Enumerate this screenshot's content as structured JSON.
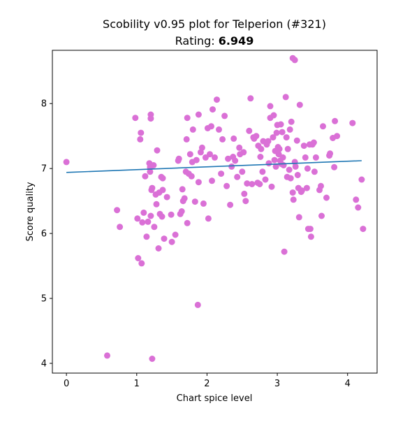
{
  "chart_data": {
    "type": "scatter",
    "title": "Scobility v0.95 plot for Telperion (#321)",
    "subtitle_prefix": "Rating: ",
    "rating": "6.949",
    "xlabel": "Chart spice level",
    "ylabel": "Score quality",
    "xlim": [
      -0.2,
      4.42
    ],
    "ylim": [
      3.85,
      8.82
    ],
    "xticks": [
      0,
      1,
      2,
      3,
      4
    ],
    "yticks": [
      4,
      5,
      6,
      7,
      8
    ],
    "grid": false,
    "colors": {
      "points": "#da70d6",
      "fit_line": "#1f77b4"
    },
    "fit_line": {
      "x": [
        0.0,
        4.2
      ],
      "y": [
        6.94,
        7.12
      ]
    },
    "points": [
      [
        0.0,
        7.1
      ],
      [
        0.58,
        4.12
      ],
      [
        0.72,
        6.36
      ],
      [
        0.76,
        6.1
      ],
      [
        0.98,
        7.78
      ],
      [
        1.01,
        6.23
      ],
      [
        1.02,
        5.62
      ],
      [
        1.05,
        7.45
      ],
      [
        1.06,
        7.55
      ],
      [
        1.07,
        5.54
      ],
      [
        1.08,
        6.17
      ],
      [
        1.1,
        6.32
      ],
      [
        1.12,
        6.88
      ],
      [
        1.14,
        5.95
      ],
      [
        1.16,
        6.18
      ],
      [
        1.18,
        7.08
      ],
      [
        1.19,
        7.02
      ],
      [
        1.2,
        7.83
      ],
      [
        1.2,
        7.77
      ],
      [
        1.21,
        6.67
      ],
      [
        1.19,
        6.95
      ],
      [
        1.2,
        6.27
      ],
      [
        1.22,
        6.7
      ],
      [
        1.22,
        4.07
      ],
      [
        1.24,
        7.05
      ],
      [
        1.25,
        6.1
      ],
      [
        1.27,
        6.6
      ],
      [
        1.28,
        6.45
      ],
      [
        1.29,
        7.28
      ],
      [
        1.31,
        5.77
      ],
      [
        1.32,
        6.63
      ],
      [
        1.33,
        6.3
      ],
      [
        1.35,
        6.87
      ],
      [
        1.36,
        6.26
      ],
      [
        1.37,
        6.67
      ],
      [
        1.37,
        6.85
      ],
      [
        1.39,
        5.92
      ],
      [
        1.43,
        6.56
      ],
      [
        1.49,
        6.29
      ],
      [
        1.5,
        5.87
      ],
      [
        1.55,
        5.98
      ],
      [
        1.59,
        7.12
      ],
      [
        1.6,
        7.15
      ],
      [
        1.62,
        6.3
      ],
      [
        1.64,
        6.34
      ],
      [
        1.65,
        6.68
      ],
      [
        1.66,
        6.5
      ],
      [
        1.68,
        6.54
      ],
      [
        1.7,
        6.95
      ],
      [
        1.71,
        7.45
      ],
      [
        1.72,
        6.16
      ],
      [
        1.72,
        7.78
      ],
      [
        1.74,
        6.92
      ],
      [
        1.76,
        7.22
      ],
      [
        1.78,
        6.88
      ],
      [
        1.79,
        7.1
      ],
      [
        1.8,
        7.6
      ],
      [
        1.83,
        6.49
      ],
      [
        1.85,
        7.13
      ],
      [
        1.87,
        4.9
      ],
      [
        1.88,
        6.79
      ],
      [
        1.88,
        7.83
      ],
      [
        1.91,
        7.25
      ],
      [
        1.93,
        7.32
      ],
      [
        1.95,
        6.46
      ],
      [
        1.98,
        7.17
      ],
      [
        2.01,
        7.62
      ],
      [
        2.02,
        6.23
      ],
      [
        2.04,
        7.22
      ],
      [
        2.06,
        7.65
      ],
      [
        2.07,
        6.81
      ],
      [
        2.08,
        7.91
      ],
      [
        2.11,
        7.17
      ],
      [
        2.14,
        8.06
      ],
      [
        2.17,
        7.6
      ],
      [
        2.2,
        6.92
      ],
      [
        2.22,
        7.45
      ],
      [
        2.25,
        7.81
      ],
      [
        2.28,
        6.73
      ],
      [
        2.3,
        7.15
      ],
      [
        2.33,
        6.44
      ],
      [
        2.35,
        7.03
      ],
      [
        2.37,
        7.18
      ],
      [
        2.38,
        7.46
      ],
      [
        2.4,
        7.12
      ],
      [
        2.43,
        6.87
      ],
      [
        2.46,
        7.32
      ],
      [
        2.47,
        7.22
      ],
      [
        2.5,
        6.95
      ],
      [
        2.52,
        7.25
      ],
      [
        2.53,
        6.61
      ],
      [
        2.55,
        6.5
      ],
      [
        2.57,
        6.77
      ],
      [
        2.6,
        7.58
      ],
      [
        2.62,
        8.08
      ],
      [
        2.64,
        6.76
      ],
      [
        2.66,
        7.48
      ],
      [
        2.67,
        7.46
      ],
      [
        2.7,
        7.5
      ],
      [
        2.72,
        6.78
      ],
      [
        2.73,
        7.35
      ],
      [
        2.75,
        6.76
      ],
      [
        2.76,
        7.18
      ],
      [
        2.77,
        7.3
      ],
      [
        2.79,
        6.95
      ],
      [
        2.8,
        7.42
      ],
      [
        2.83,
        6.83
      ],
      [
        2.85,
        7.37
      ],
      [
        2.87,
        7.42
      ],
      [
        2.88,
        7.08
      ],
      [
        2.9,
        7.78
      ],
      [
        2.9,
        7.96
      ],
      [
        2.92,
        6.72
      ],
      [
        2.94,
        7.48
      ],
      [
        2.95,
        7.82
      ],
      [
        2.96,
        7.13
      ],
      [
        2.97,
        7.27
      ],
      [
        2.98,
        7.03
      ],
      [
        2.99,
        7.55
      ],
      [
        3.0,
        7.67
      ],
      [
        3.01,
        7.33
      ],
      [
        3.02,
        7.22
      ],
      [
        3.03,
        7.3
      ],
      [
        3.04,
        7.12
      ],
      [
        3.05,
        7.68
      ],
      [
        3.06,
        7.07
      ],
      [
        3.07,
        7.56
      ],
      [
        3.08,
        7.17
      ],
      [
        3.09,
        7.05
      ],
      [
        3.1,
        5.72
      ],
      [
        3.12,
        8.1
      ],
      [
        3.13,
        7.48
      ],
      [
        3.14,
        6.87
      ],
      [
        3.15,
        7.3
      ],
      [
        3.17,
        6.98
      ],
      [
        3.18,
        7.6
      ],
      [
        3.19,
        6.85
      ],
      [
        3.2,
        7.72
      ],
      [
        3.22,
        6.63
      ],
      [
        3.22,
        8.7
      ],
      [
        3.23,
        6.52
      ],
      [
        3.25,
        8.67
      ],
      [
        3.25,
        7.1
      ],
      [
        3.26,
        7.03
      ],
      [
        3.28,
        7.43
      ],
      [
        3.29,
        6.9
      ],
      [
        3.3,
        6.7
      ],
      [
        3.31,
        6.25
      ],
      [
        3.32,
        7.98
      ],
      [
        3.34,
        6.64
      ],
      [
        3.35,
        6.66
      ],
      [
        3.38,
        7.35
      ],
      [
        3.4,
        7.17
      ],
      [
        3.42,
        6.7
      ],
      [
        3.43,
        7.0
      ],
      [
        3.44,
        6.07
      ],
      [
        3.46,
        7.37
      ],
      [
        3.47,
        6.07
      ],
      [
        3.48,
        5.95
      ],
      [
        3.5,
        7.37
      ],
      [
        3.52,
        7.4
      ],
      [
        3.53,
        6.95
      ],
      [
        3.55,
        7.17
      ],
      [
        3.6,
        6.67
      ],
      [
        3.62,
        6.73
      ],
      [
        3.63,
        6.27
      ],
      [
        3.65,
        7.65
      ],
      [
        3.7,
        6.55
      ],
      [
        3.74,
        7.2
      ],
      [
        3.75,
        7.23
      ],
      [
        3.79,
        7.47
      ],
      [
        3.81,
        7.02
      ],
      [
        3.82,
        7.73
      ],
      [
        3.85,
        7.5
      ],
      [
        4.07,
        7.7
      ],
      [
        4.12,
        6.52
      ],
      [
        4.15,
        6.4
      ],
      [
        4.2,
        6.83
      ],
      [
        4.22,
        6.07
      ]
    ]
  }
}
